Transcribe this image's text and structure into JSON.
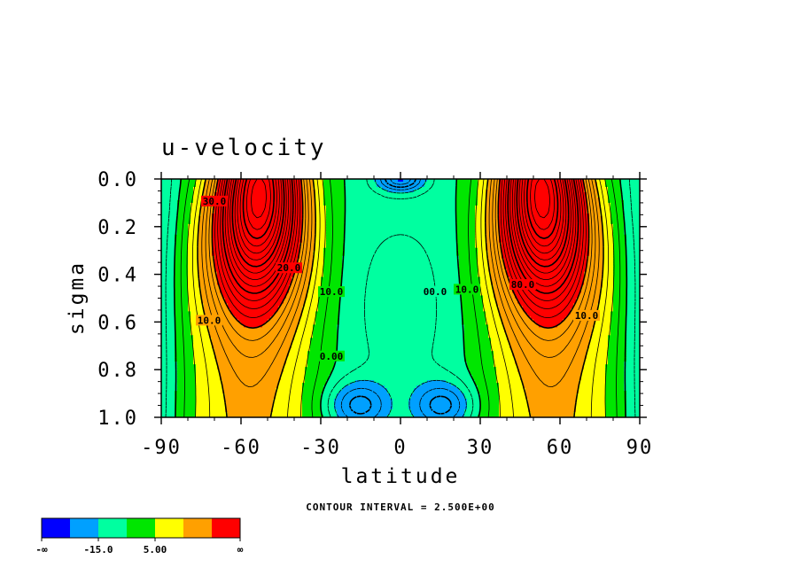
{
  "chart_data": {
    "type": "contour",
    "title": "u-velocity",
    "xlabel": "latitude",
    "ylabel": "sigma",
    "xlim": [
      -90,
      90
    ],
    "ylim": [
      0.0,
      1.0
    ],
    "y_inverted": true,
    "xticks": [
      "-90",
      "-60",
      "-30",
      "0",
      "30",
      "60",
      "90"
    ],
    "xtick_values": [
      -90,
      -60,
      -30,
      0,
      30,
      60,
      90
    ],
    "yticks": [
      "0.0",
      "0.2",
      "0.4",
      "0.6",
      "0.8",
      "1.0"
    ],
    "ytick_values": [
      0.0,
      0.2,
      0.4,
      0.6,
      0.8,
      1.0
    ],
    "contour_interval_note": "CONTOUR INTERVAL = 2.500E+00",
    "contour_interval": 2.5,
    "contour_labels": [
      {
        "text": "20.0",
        "lat": -42,
        "sigma": 0.38
      },
      {
        "text": "10.0",
        "lat": -26,
        "sigma": 0.48
      },
      {
        "text": "0.00",
        "lat": -26,
        "sigma": 0.75
      },
      {
        "text": "10.0",
        "lat": -72,
        "sigma": 0.6
      },
      {
        "text": "00.0",
        "lat": 13,
        "sigma": 0.48
      },
      {
        "text": "10.0",
        "lat": 25,
        "sigma": 0.47
      },
      {
        "text": "80.0",
        "lat": 46,
        "sigma": 0.45
      },
      {
        "text": "10.0",
        "lat": 70,
        "sigma": 0.58
      },
      {
        "text": "30.0",
        "lat": -70,
        "sigma": 0.1
      }
    ],
    "features": [
      {
        "name": "southern jet",
        "lat": -52,
        "sigma": 0.12,
        "level": "max"
      },
      {
        "name": "northern jet",
        "lat": 52,
        "sigma": 0.12,
        "level": "max"
      },
      {
        "name": "tropical easterlies near surface south",
        "lat": -17,
        "sigma": 0.93,
        "level": "negative"
      },
      {
        "name": "tropical easterlies near surface north",
        "lat": 17,
        "sigma": 0.93,
        "level": "negative"
      },
      {
        "name": "upper equatorial easterlies",
        "lat": 0,
        "sigma": 0.03,
        "level": "most negative"
      }
    ],
    "legend": {
      "colors": [
        "#0000ff",
        "#00a0ff",
        "#00ffa0",
        "#00e600",
        "#ffff00",
        "#ffa000",
        "#ff0000"
      ],
      "labels": [
        "-∞",
        "-15.0",
        "5.00",
        "∞"
      ]
    }
  }
}
